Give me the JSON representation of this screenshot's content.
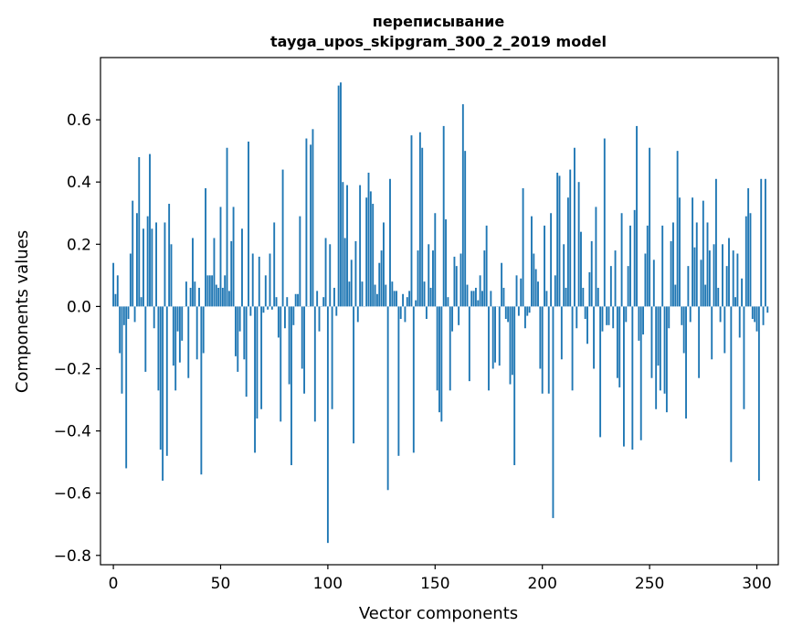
{
  "chart_data": {
    "type": "bar",
    "title": [
      "переписывание",
      "tayga_upos_skipgram_300_2_2019 model"
    ],
    "xlabel": "Vector components",
    "ylabel": "Components values",
    "xlim": [
      -6,
      310
    ],
    "ylim": [
      -0.83,
      0.8
    ],
    "xticks": [
      0,
      50,
      100,
      150,
      200,
      250,
      300
    ],
    "xtick_labels": [
      "0",
      "50",
      "100",
      "150",
      "200",
      "250",
      "300"
    ],
    "yticks": [
      -0.8,
      -0.6,
      -0.4,
      -0.2,
      0.0,
      0.2,
      0.4,
      0.6
    ],
    "ytick_labels": [
      "−0.8",
      "−0.6",
      "−0.4",
      "−0.2",
      "0.0",
      "0.2",
      "0.4",
      "0.6"
    ],
    "bar_color": "#1f77b4",
    "grid": false,
    "values": [
      0.14,
      0.04,
      0.1,
      -0.15,
      -0.28,
      -0.06,
      -0.52,
      -0.04,
      0.17,
      0.34,
      -0.05,
      0.3,
      0.48,
      0.03,
      0.25,
      -0.21,
      0.29,
      0.49,
      0.25,
      -0.07,
      0.27,
      -0.27,
      -0.46,
      -0.56,
      0.27,
      -0.48,
      0.33,
      0.2,
      -0.19,
      -0.27,
      -0.08,
      -0.18,
      -0.11,
      0.0,
      0.08,
      -0.23,
      0.06,
      0.22,
      0.08,
      -0.17,
      0.06,
      -0.54,
      -0.15,
      0.38,
      0.1,
      0.1,
      0.1,
      0.22,
      0.07,
      0.06,
      0.32,
      0.06,
      0.1,
      0.51,
      0.05,
      0.21,
      0.32,
      -0.16,
      -0.21,
      -0.08,
      0.25,
      -0.17,
      -0.29,
      0.53,
      -0.03,
      0.17,
      -0.47,
      -0.36,
      0.16,
      -0.33,
      -0.02,
      0.1,
      -0.01,
      0.17,
      -0.01,
      0.27,
      0.03,
      -0.1,
      -0.37,
      0.44,
      -0.07,
      0.03,
      -0.25,
      -0.51,
      -0.06,
      0.04,
      0.04,
      0.29,
      -0.2,
      -0.28,
      0.54,
      0.0,
      0.52,
      0.57,
      -0.37,
      0.05,
      -0.08,
      0.0,
      0.03,
      0.22,
      -0.76,
      0.2,
      -0.33,
      0.06,
      -0.03,
      0.71,
      0.72,
      0.4,
      0.22,
      0.39,
      0.08,
      0.15,
      -0.44,
      0.21,
      -0.05,
      0.39,
      0.08,
      0.0,
      0.35,
      0.43,
      0.37,
      0.33,
      0.07,
      0.04,
      0.14,
      0.18,
      0.27,
      0.07,
      -0.59,
      0.41,
      0.08,
      0.05,
      0.05,
      -0.48,
      -0.04,
      0.04,
      -0.05,
      0.03,
      0.05,
      0.55,
      -0.47,
      0.02,
      0.18,
      0.56,
      0.51,
      0.08,
      -0.04,
      0.2,
      0.06,
      0.18,
      0.3,
      -0.27,
      -0.34,
      -0.37,
      0.58,
      0.28,
      0.03,
      -0.27,
      -0.08,
      0.16,
      0.13,
      -0.06,
      0.17,
      0.65,
      0.5,
      0.07,
      -0.24,
      0.05,
      0.05,
      0.06,
      0.02,
      0.1,
      0.05,
      0.18,
      0.26,
      -0.27,
      0.05,
      -0.2,
      -0.18,
      0.0,
      -0.19,
      0.14,
      0.06,
      -0.04,
      -0.05,
      -0.25,
      -0.22,
      -0.51,
      0.1,
      -0.03,
      0.09,
      0.38,
      -0.07,
      -0.03,
      -0.02,
      0.29,
      0.17,
      0.12,
      0.08,
      -0.2,
      -0.28,
      0.26,
      0.05,
      -0.28,
      0.3,
      -0.68,
      0.1,
      0.43,
      0.42,
      -0.17,
      0.2,
      0.06,
      0.35,
      0.44,
      -0.27,
      0.51,
      -0.07,
      0.4,
      0.24,
      0.06,
      -0.04,
      -0.12,
      0.11,
      0.21,
      -0.2,
      0.32,
      0.06,
      -0.42,
      -0.08,
      0.54,
      -0.06,
      -0.06,
      0.13,
      -0.07,
      0.18,
      -0.23,
      -0.26,
      0.3,
      -0.45,
      -0.05,
      0.13,
      0.26,
      -0.46,
      0.31,
      0.58,
      -0.11,
      -0.43,
      -0.09,
      0.17,
      0.26,
      0.51,
      -0.23,
      0.15,
      -0.33,
      -0.19,
      -0.27,
      0.26,
      -0.28,
      -0.34,
      -0.07,
      0.21,
      0.27,
      0.07,
      0.5,
      0.35,
      -0.06,
      -0.15,
      -0.36,
      0.13,
      -0.05,
      0.35,
      0.19,
      0.27,
      -0.23,
      0.15,
      0.34,
      0.07,
      0.27,
      0.18,
      -0.17,
      0.2,
      0.41,
      0.06,
      -0.05,
      0.2,
      -0.15,
      0.13,
      0.22,
      -0.5,
      0.18,
      0.03,
      0.17,
      -0.1,
      0.09,
      -0.33,
      0.29,
      0.38,
      0.3,
      -0.04,
      -0.05,
      -0.08,
      -0.56,
      0.41,
      -0.06,
      0.41,
      -0.02
    ]
  }
}
